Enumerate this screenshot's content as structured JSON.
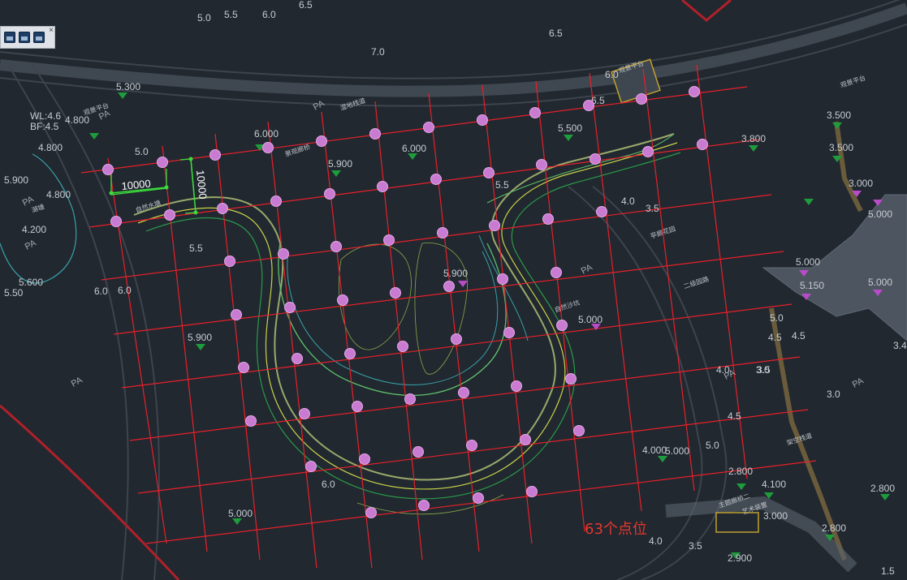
{
  "toolbar": {
    "close_glyph": "×",
    "buttons": [
      "file-icon",
      "save-icon",
      "document-icon"
    ]
  },
  "dimensions": {
    "horizontal": "10000",
    "vertical": "10000"
  },
  "note": {
    "text": "63个点位"
  },
  "colors": {
    "background": "#212830",
    "grid": "#e8202a",
    "point": "#c97bd2",
    "elevation_text": "#c8ccd2",
    "dimension": "#3cdc3c",
    "marker": "#1e9c3c",
    "contour": "#9aa86a",
    "road": "#4a525c"
  },
  "elevations": [
    {
      "text": "5.0"
    },
    {
      "text": "5.5"
    },
    {
      "text": "6.0"
    },
    {
      "text": "6.5"
    },
    {
      "text": "6.5"
    },
    {
      "text": "7.0"
    },
    {
      "text": "6.0"
    },
    {
      "text": "6.5"
    },
    {
      "text": "5.300"
    },
    {
      "text": "WL:4.6"
    },
    {
      "text": "BF:4.5"
    },
    {
      "text": "4.800"
    },
    {
      "text": "4.800"
    },
    {
      "text": "6.000"
    },
    {
      "text": "5.900"
    },
    {
      "text": "6.000"
    },
    {
      "text": "5.500"
    },
    {
      "text": "3.800"
    },
    {
      "text": "3.500"
    },
    {
      "text": "3.500"
    },
    {
      "text": "3.000"
    },
    {
      "text": "5.000"
    },
    {
      "text": "4.800"
    },
    {
      "text": "4.200"
    },
    {
      "text": "5.600"
    },
    {
      "text": "5.0"
    },
    {
      "text": "6.0"
    },
    {
      "text": "5.5"
    },
    {
      "text": "5.5"
    },
    {
      "text": "5.900"
    },
    {
      "text": "5.000"
    },
    {
      "text": "5.000"
    },
    {
      "text": "5.150"
    },
    {
      "text": "5.000"
    },
    {
      "text": "5.900"
    },
    {
      "text": "5.000"
    },
    {
      "text": "4.000"
    },
    {
      "text": "5.0"
    },
    {
      "text": "6.0"
    },
    {
      "text": "5.000"
    },
    {
      "text": "5.900"
    },
    {
      "text": "2.800"
    },
    {
      "text": "4.100"
    },
    {
      "text": "2.800"
    },
    {
      "text": "2.800"
    },
    {
      "text": "3.000"
    },
    {
      "text": "2.900"
    },
    {
      "text": "4.0"
    },
    {
      "text": "3.5"
    },
    {
      "text": "4.0"
    },
    {
      "text": "4.5"
    },
    {
      "text": "3.5"
    },
    {
      "text": "3.0"
    },
    {
      "text": "5.0"
    },
    {
      "text": "4.5"
    },
    {
      "text": "4.5"
    },
    {
      "text": "4.0"
    },
    {
      "text": "3.5"
    },
    {
      "text": "3.0"
    },
    {
      "text": "3.4"
    },
    {
      "text": "1.5"
    },
    {
      "text": "5.50"
    },
    {
      "text": "6.0"
    }
  ],
  "pa_labels": [
    "PA",
    "PA",
    "PA",
    "PA",
    "PA",
    "PA",
    "PA",
    "PA"
  ],
  "place_labels": [
    "湿地栈道",
    "观景平台",
    "观景平台",
    "湖塘",
    "景观廊桥",
    "亭廊花园",
    "自然沙坑",
    "二级园路",
    "自然水塘",
    "观景平台",
    "架空栈道",
    "主题廊桥二",
    "艺术装置"
  ]
}
